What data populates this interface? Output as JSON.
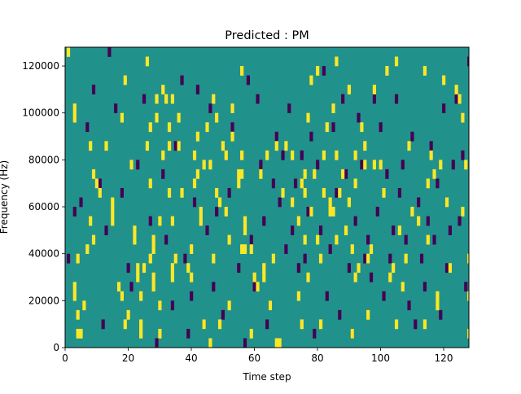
{
  "chart_data": {
    "type": "heatmap",
    "title": "Predicted : PM",
    "xlabel": "Time step",
    "ylabel": "Frequency (Hz)",
    "xlim": [
      0,
      128
    ],
    "ylim": [
      0,
      128000
    ],
    "x_ticks": [
      0,
      20,
      40,
      60,
      80,
      100,
      120
    ],
    "y_ticks": [
      0,
      20000,
      40000,
      60000,
      80000,
      100000,
      120000
    ],
    "x_tick_labels": [
      "0",
      "20",
      "40",
      "60",
      "80",
      "100",
      "120"
    ],
    "y_tick_labels": [
      "0",
      "20000",
      "40000",
      "60000",
      "80000",
      "100000",
      "120000"
    ],
    "n_time_steps": 128,
    "n_frequency_bins": 32,
    "bin_width_hz": 4000,
    "colormap": "viridis",
    "legend": "none",
    "grid": false,
    "colors": {
      "background": "#21918c",
      "high": "#fde725",
      "low": "#440154"
    },
    "high_cells": [
      [
        1,
        31
      ],
      [
        3,
        24
      ],
      [
        3,
        25
      ],
      [
        3,
        5
      ],
      [
        3,
        6
      ],
      [
        4,
        9
      ],
      [
        4,
        3
      ],
      [
        4,
        1
      ],
      [
        5,
        1
      ],
      [
        6,
        4
      ],
      [
        7,
        10
      ],
      [
        8,
        21
      ],
      [
        8,
        13
      ],
      [
        9,
        18
      ],
      [
        9,
        11
      ],
      [
        10,
        17
      ],
      [
        11,
        16
      ],
      [
        13,
        21
      ],
      [
        15,
        15
      ],
      [
        15,
        14
      ],
      [
        15,
        13
      ],
      [
        17,
        6
      ],
      [
        18,
        24
      ],
      [
        18,
        5
      ],
      [
        19,
        28
      ],
      [
        19,
        2
      ],
      [
        20,
        3
      ],
      [
        21,
        19
      ],
      [
        22,
        11
      ],
      [
        22,
        12
      ],
      [
        23,
        8
      ],
      [
        23,
        7
      ],
      [
        24,
        5
      ],
      [
        24,
        2
      ],
      [
        24,
        1
      ],
      [
        25,
        8
      ],
      [
        26,
        21
      ],
      [
        26,
        30
      ],
      [
        27,
        23
      ],
      [
        27,
        17
      ],
      [
        27,
        9
      ],
      [
        28,
        11
      ],
      [
        28,
        10
      ],
      [
        28,
        7
      ],
      [
        28,
        6
      ],
      [
        29,
        24
      ],
      [
        29,
        26
      ],
      [
        30,
        13
      ],
      [
        30,
        4
      ],
      [
        30,
        1
      ],
      [
        31,
        20
      ],
      [
        31,
        27
      ],
      [
        32,
        26
      ],
      [
        33,
        23
      ],
      [
        33,
        21
      ],
      [
        33,
        16
      ],
      [
        34,
        13
      ],
      [
        34,
        8
      ],
      [
        34,
        7
      ],
      [
        34,
        26
      ],
      [
        35,
        9
      ],
      [
        36,
        24
      ],
      [
        36,
        21
      ],
      [
        37,
        16
      ],
      [
        39,
        8
      ],
      [
        40,
        10
      ],
      [
        40,
        7
      ],
      [
        41,
        17
      ],
      [
        41,
        20
      ],
      [
        42,
        22
      ],
      [
        42,
        18
      ],
      [
        43,
        13
      ],
      [
        43,
        14
      ],
      [
        44,
        19
      ],
      [
        44,
        2
      ],
      [
        45,
        23
      ],
      [
        46,
        0
      ],
      [
        46,
        19
      ],
      [
        47,
        9
      ],
      [
        47,
        26
      ],
      [
        48,
        16
      ],
      [
        48,
        24
      ],
      [
        49,
        15
      ],
      [
        49,
        2
      ],
      [
        50,
        21
      ],
      [
        51,
        14
      ],
      [
        51,
        20
      ],
      [
        52,
        4
      ],
      [
        52,
        11
      ],
      [
        53,
        25
      ],
      [
        53,
        22
      ],
      [
        55,
        18
      ],
      [
        55,
        17
      ],
      [
        56,
        20
      ],
      [
        56,
        18
      ],
      [
        56,
        10
      ],
      [
        56,
        29
      ],
      [
        57,
        13
      ],
      [
        57,
        12
      ],
      [
        57,
        10
      ],
      [
        59,
        10
      ],
      [
        59,
        1
      ],
      [
        60,
        7
      ],
      [
        61,
        6
      ],
      [
        62,
        18
      ],
      [
        63,
        8
      ],
      [
        63,
        7
      ],
      [
        64,
        20
      ],
      [
        65,
        4
      ],
      [
        66,
        9
      ],
      [
        67,
        21
      ],
      [
        67,
        0
      ],
      [
        68,
        0
      ],
      [
        69,
        16
      ],
      [
        70,
        21
      ],
      [
        72,
        20
      ],
      [
        72,
        15
      ],
      [
        74,
        13
      ],
      [
        74,
        5
      ],
      [
        75,
        2
      ],
      [
        75,
        17
      ],
      [
        76,
        18
      ],
      [
        76,
        16
      ],
      [
        76,
        11
      ],
      [
        77,
        24
      ],
      [
        77,
        7
      ],
      [
        78,
        14
      ],
      [
        78,
        28
      ],
      [
        79,
        18
      ],
      [
        80,
        11
      ],
      [
        80,
        29
      ],
      [
        81,
        9
      ],
      [
        81,
        2
      ],
      [
        82,
        20
      ],
      [
        82,
        16
      ],
      [
        83,
        23
      ],
      [
        84,
        15
      ],
      [
        84,
        14
      ],
      [
        85,
        14
      ],
      [
        85,
        25
      ],
      [
        86,
        20
      ],
      [
        86,
        11
      ],
      [
        86,
        30
      ],
      [
        87,
        16
      ],
      [
        88,
        18
      ],
      [
        89,
        12
      ],
      [
        90,
        27
      ],
      [
        90,
        15
      ],
      [
        91,
        1
      ],
      [
        91,
        10
      ],
      [
        92,
        17
      ],
      [
        92,
        20
      ],
      [
        92,
        7
      ],
      [
        93,
        8
      ],
      [
        94,
        23
      ],
      [
        95,
        21
      ],
      [
        95,
        19
      ],
      [
        96,
        3
      ],
      [
        96,
        9
      ],
      [
        97,
        10
      ],
      [
        98,
        19
      ],
      [
        98,
        27
      ],
      [
        100,
        19
      ],
      [
        101,
        16
      ],
      [
        102,
        29
      ],
      [
        103,
        7
      ],
      [
        104,
        8
      ],
      [
        105,
        30
      ],
      [
        105,
        2
      ],
      [
        106,
        12
      ],
      [
        107,
        6
      ],
      [
        108,
        9
      ],
      [
        109,
        21
      ],
      [
        110,
        14
      ],
      [
        112,
        13
      ],
      [
        114,
        2
      ],
      [
        114,
        29
      ],
      [
        115,
        11
      ],
      [
        115,
        17
      ],
      [
        116,
        20
      ],
      [
        117,
        18
      ],
      [
        118,
        4
      ],
      [
        118,
        5
      ],
      [
        119,
        19
      ],
      [
        120,
        28
      ],
      [
        121,
        15
      ],
      [
        122,
        8
      ],
      [
        124,
        27
      ],
      [
        125,
        26
      ],
      [
        126,
        14
      ],
      [
        126,
        24
      ],
      [
        127,
        19
      ],
      [
        128,
        1
      ],
      [
        128,
        5
      ],
      [
        128,
        9
      ]
    ],
    "low_cells": [
      [
        1,
        9
      ],
      [
        3,
        14
      ],
      [
        5,
        15
      ],
      [
        7,
        23
      ],
      [
        9,
        27
      ],
      [
        11,
        17
      ],
      [
        12,
        2
      ],
      [
        13,
        12
      ],
      [
        14,
        31
      ],
      [
        16,
        25
      ],
      [
        18,
        16
      ],
      [
        20,
        8
      ],
      [
        21,
        6
      ],
      [
        23,
        19
      ],
      [
        25,
        26
      ],
      [
        27,
        13
      ],
      [
        29,
        0
      ],
      [
        31,
        18
      ],
      [
        32,
        11
      ],
      [
        34,
        4
      ],
      [
        35,
        21
      ],
      [
        37,
        28
      ],
      [
        38,
        9
      ],
      [
        39,
        1
      ],
      [
        40,
        5
      ],
      [
        41,
        15
      ],
      [
        42,
        27
      ],
      [
        44,
        2
      ],
      [
        45,
        12
      ],
      [
        46,
        25
      ],
      [
        47,
        6
      ],
      [
        48,
        14
      ],
      [
        50,
        3
      ],
      [
        52,
        16
      ],
      [
        53,
        23
      ],
      [
        55,
        8
      ],
      [
        57,
        0
      ],
      [
        58,
        28
      ],
      [
        59,
        11
      ],
      [
        60,
        6
      ],
      [
        61,
        26
      ],
      [
        62,
        19
      ],
      [
        63,
        13
      ],
      [
        64,
        2
      ],
      [
        65,
        4
      ],
      [
        66,
        17
      ],
      [
        67,
        22
      ],
      [
        68,
        15
      ],
      [
        69,
        20
      ],
      [
        70,
        10
      ],
      [
        71,
        25
      ],
      [
        72,
        12
      ],
      [
        73,
        17
      ],
      [
        74,
        8
      ],
      [
        75,
        20
      ],
      [
        76,
        9
      ],
      [
        77,
        14
      ],
      [
        78,
        22
      ],
      [
        79,
        1
      ],
      [
        80,
        19
      ],
      [
        81,
        12
      ],
      [
        82,
        29
      ],
      [
        83,
        5
      ],
      [
        84,
        10
      ],
      [
        85,
        23
      ],
      [
        86,
        16
      ],
      [
        87,
        3
      ],
      [
        88,
        26
      ],
      [
        89,
        18
      ],
      [
        90,
        8
      ],
      [
        91,
        1
      ],
      [
        92,
        13
      ],
      [
        93,
        24
      ],
      [
        94,
        19
      ],
      [
        95,
        9
      ],
      [
        96,
        11
      ],
      [
        97,
        7
      ],
      [
        98,
        26
      ],
      [
        99,
        14
      ],
      [
        100,
        23
      ],
      [
        101,
        5
      ],
      [
        102,
        18
      ],
      [
        103,
        9
      ],
      [
        104,
        12
      ],
      [
        105,
        26
      ],
      [
        106,
        16
      ],
      [
        107,
        19
      ],
      [
        108,
        11
      ],
      [
        109,
        4
      ],
      [
        110,
        22
      ],
      [
        111,
        2
      ],
      [
        112,
        15
      ],
      [
        113,
        9
      ],
      [
        114,
        6
      ],
      [
        115,
        13
      ],
      [
        116,
        21
      ],
      [
        117,
        11
      ],
      [
        118,
        17
      ],
      [
        119,
        3
      ],
      [
        120,
        25
      ],
      [
        121,
        8
      ],
      [
        122,
        12
      ],
      [
        123,
        19
      ],
      [
        124,
        26
      ],
      [
        125,
        13
      ],
      [
        126,
        20
      ],
      [
        127,
        6
      ],
      [
        128,
        30
      ]
    ]
  }
}
